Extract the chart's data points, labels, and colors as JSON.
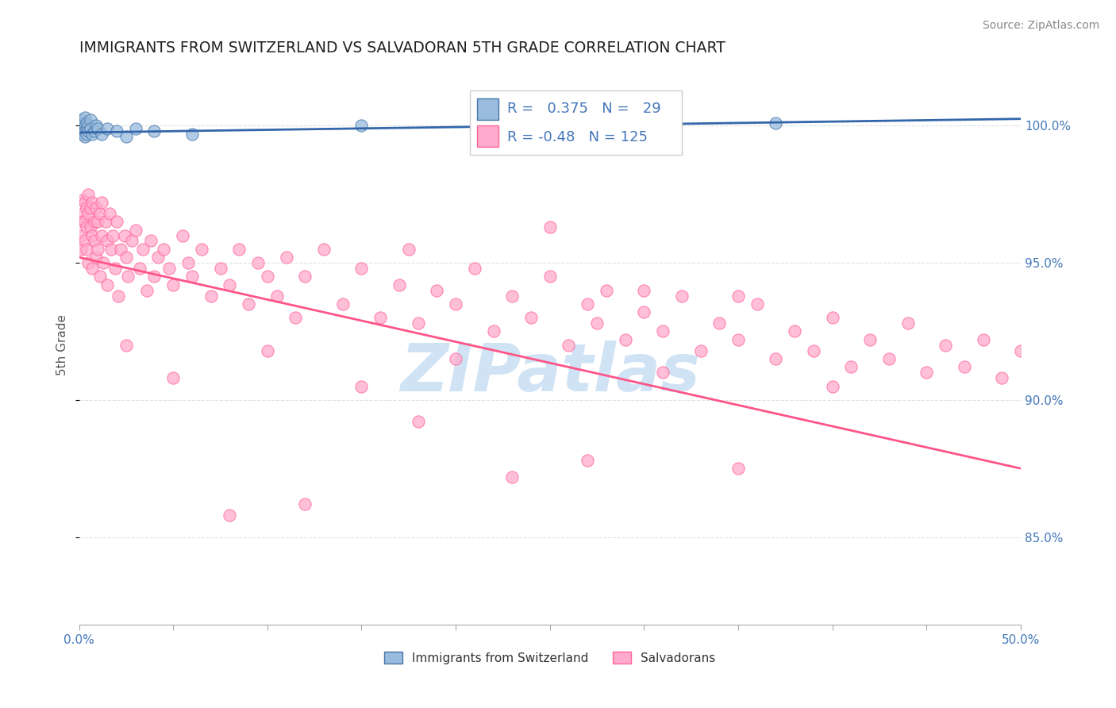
{
  "title": "IMMIGRANTS FROM SWITZERLAND VS SALVADORAN 5TH GRADE CORRELATION CHART",
  "source": "Source: ZipAtlas.com",
  "ylabel": "5th Grade",
  "ytick_labels": [
    "85.0%",
    "90.0%",
    "95.0%",
    "100.0%"
  ],
  "ytick_values": [
    0.85,
    0.9,
    0.95,
    1.0
  ],
  "xlim": [
    0.0,
    0.5
  ],
  "ylim": [
    0.818,
    1.022
  ],
  "blue_R": 0.375,
  "blue_N": 29,
  "pink_R": -0.48,
  "pink_N": 125,
  "blue_scatter_x": [
    0.001,
    0.001,
    0.002,
    0.002,
    0.002,
    0.003,
    0.003,
    0.003,
    0.003,
    0.004,
    0.004,
    0.004,
    0.005,
    0.005,
    0.006,
    0.006,
    0.007,
    0.008,
    0.009,
    0.01,
    0.012,
    0.015,
    0.02,
    0.025,
    0.03,
    0.04,
    0.06,
    0.15,
    0.37
  ],
  "blue_scatter_y": [
    0.998,
    1.002,
    1.001,
    0.999,
    0.997,
    1.003,
    1.0,
    0.998,
    0.996,
    1.001,
    0.999,
    0.997,
    1.0,
    0.998,
    1.002,
    0.999,
    0.997,
    0.998,
    1.0,
    0.999,
    0.997,
    0.999,
    0.998,
    0.996,
    0.999,
    0.998,
    0.997,
    1.0,
    1.001
  ],
  "pink_scatter_x": [
    0.001,
    0.001,
    0.002,
    0.002,
    0.002,
    0.003,
    0.003,
    0.003,
    0.004,
    0.004,
    0.004,
    0.005,
    0.005,
    0.005,
    0.006,
    0.006,
    0.007,
    0.007,
    0.007,
    0.008,
    0.008,
    0.009,
    0.009,
    0.01,
    0.01,
    0.011,
    0.011,
    0.012,
    0.012,
    0.013,
    0.014,
    0.015,
    0.015,
    0.016,
    0.017,
    0.018,
    0.019,
    0.02,
    0.021,
    0.022,
    0.024,
    0.025,
    0.026,
    0.028,
    0.03,
    0.032,
    0.034,
    0.036,
    0.038,
    0.04,
    0.042,
    0.045,
    0.048,
    0.05,
    0.055,
    0.058,
    0.06,
    0.065,
    0.07,
    0.075,
    0.08,
    0.085,
    0.09,
    0.095,
    0.1,
    0.105,
    0.11,
    0.115,
    0.12,
    0.13,
    0.14,
    0.15,
    0.16,
    0.17,
    0.175,
    0.18,
    0.19,
    0.2,
    0.21,
    0.22,
    0.23,
    0.24,
    0.25,
    0.26,
    0.27,
    0.275,
    0.28,
    0.29,
    0.3,
    0.31,
    0.32,
    0.33,
    0.34,
    0.35,
    0.36,
    0.37,
    0.38,
    0.39,
    0.4,
    0.41,
    0.42,
    0.43,
    0.44,
    0.45,
    0.46,
    0.47,
    0.48,
    0.49,
    0.5,
    0.31,
    0.025,
    0.05,
    0.1,
    0.15,
    0.2,
    0.25,
    0.3,
    0.35,
    0.4,
    0.18,
    0.35,
    0.27,
    0.23,
    0.12,
    0.08
  ],
  "pink_scatter_y": [
    0.96,
    0.955,
    0.968,
    0.973,
    0.965,
    0.972,
    0.958,
    0.965,
    0.97,
    0.963,
    0.955,
    0.968,
    0.975,
    0.95,
    0.963,
    0.97,
    0.972,
    0.96,
    0.948,
    0.965,
    0.958,
    0.97,
    0.952,
    0.965,
    0.955,
    0.968,
    0.945,
    0.96,
    0.972,
    0.95,
    0.965,
    0.958,
    0.942,
    0.968,
    0.955,
    0.96,
    0.948,
    0.965,
    0.938,
    0.955,
    0.96,
    0.952,
    0.945,
    0.958,
    0.962,
    0.948,
    0.955,
    0.94,
    0.958,
    0.945,
    0.952,
    0.955,
    0.948,
    0.942,
    0.96,
    0.95,
    0.945,
    0.955,
    0.938,
    0.948,
    0.942,
    0.955,
    0.935,
    0.95,
    0.945,
    0.938,
    0.952,
    0.93,
    0.945,
    0.955,
    0.935,
    0.948,
    0.93,
    0.942,
    0.955,
    0.928,
    0.94,
    0.935,
    0.948,
    0.925,
    0.938,
    0.93,
    0.945,
    0.92,
    0.935,
    0.928,
    0.94,
    0.922,
    0.932,
    0.925,
    0.938,
    0.918,
    0.928,
    0.922,
    0.935,
    0.915,
    0.925,
    0.918,
    0.93,
    0.912,
    0.922,
    0.915,
    0.928,
    0.91,
    0.92,
    0.912,
    0.922,
    0.908,
    0.918,
    0.91,
    0.92,
    0.908,
    0.918,
    0.905,
    0.915,
    0.963,
    0.94,
    0.938,
    0.905,
    0.892,
    0.875,
    0.878,
    0.872,
    0.862,
    0.858
  ],
  "blue_color": "#99BBDD",
  "pink_color": "#FFAACC",
  "blue_edge_color": "#4477AA",
  "pink_edge_color": "#FF6699",
  "blue_line_color": "#3366AA",
  "pink_line_color": "#FF5588",
  "watermark_text": "ZIPatlas",
  "watermark_color": "#AACCEE",
  "grid_color": "#E0E0E0",
  "axis_label_color": "#4477BB",
  "title_color": "#222222",
  "blue_trend_x": [
    0.0,
    0.5
  ],
  "blue_trend_y": [
    0.9975,
    1.0025
  ],
  "pink_trend_x": [
    0.0,
    0.5
  ],
  "pink_trend_y": [
    0.952,
    0.875
  ]
}
